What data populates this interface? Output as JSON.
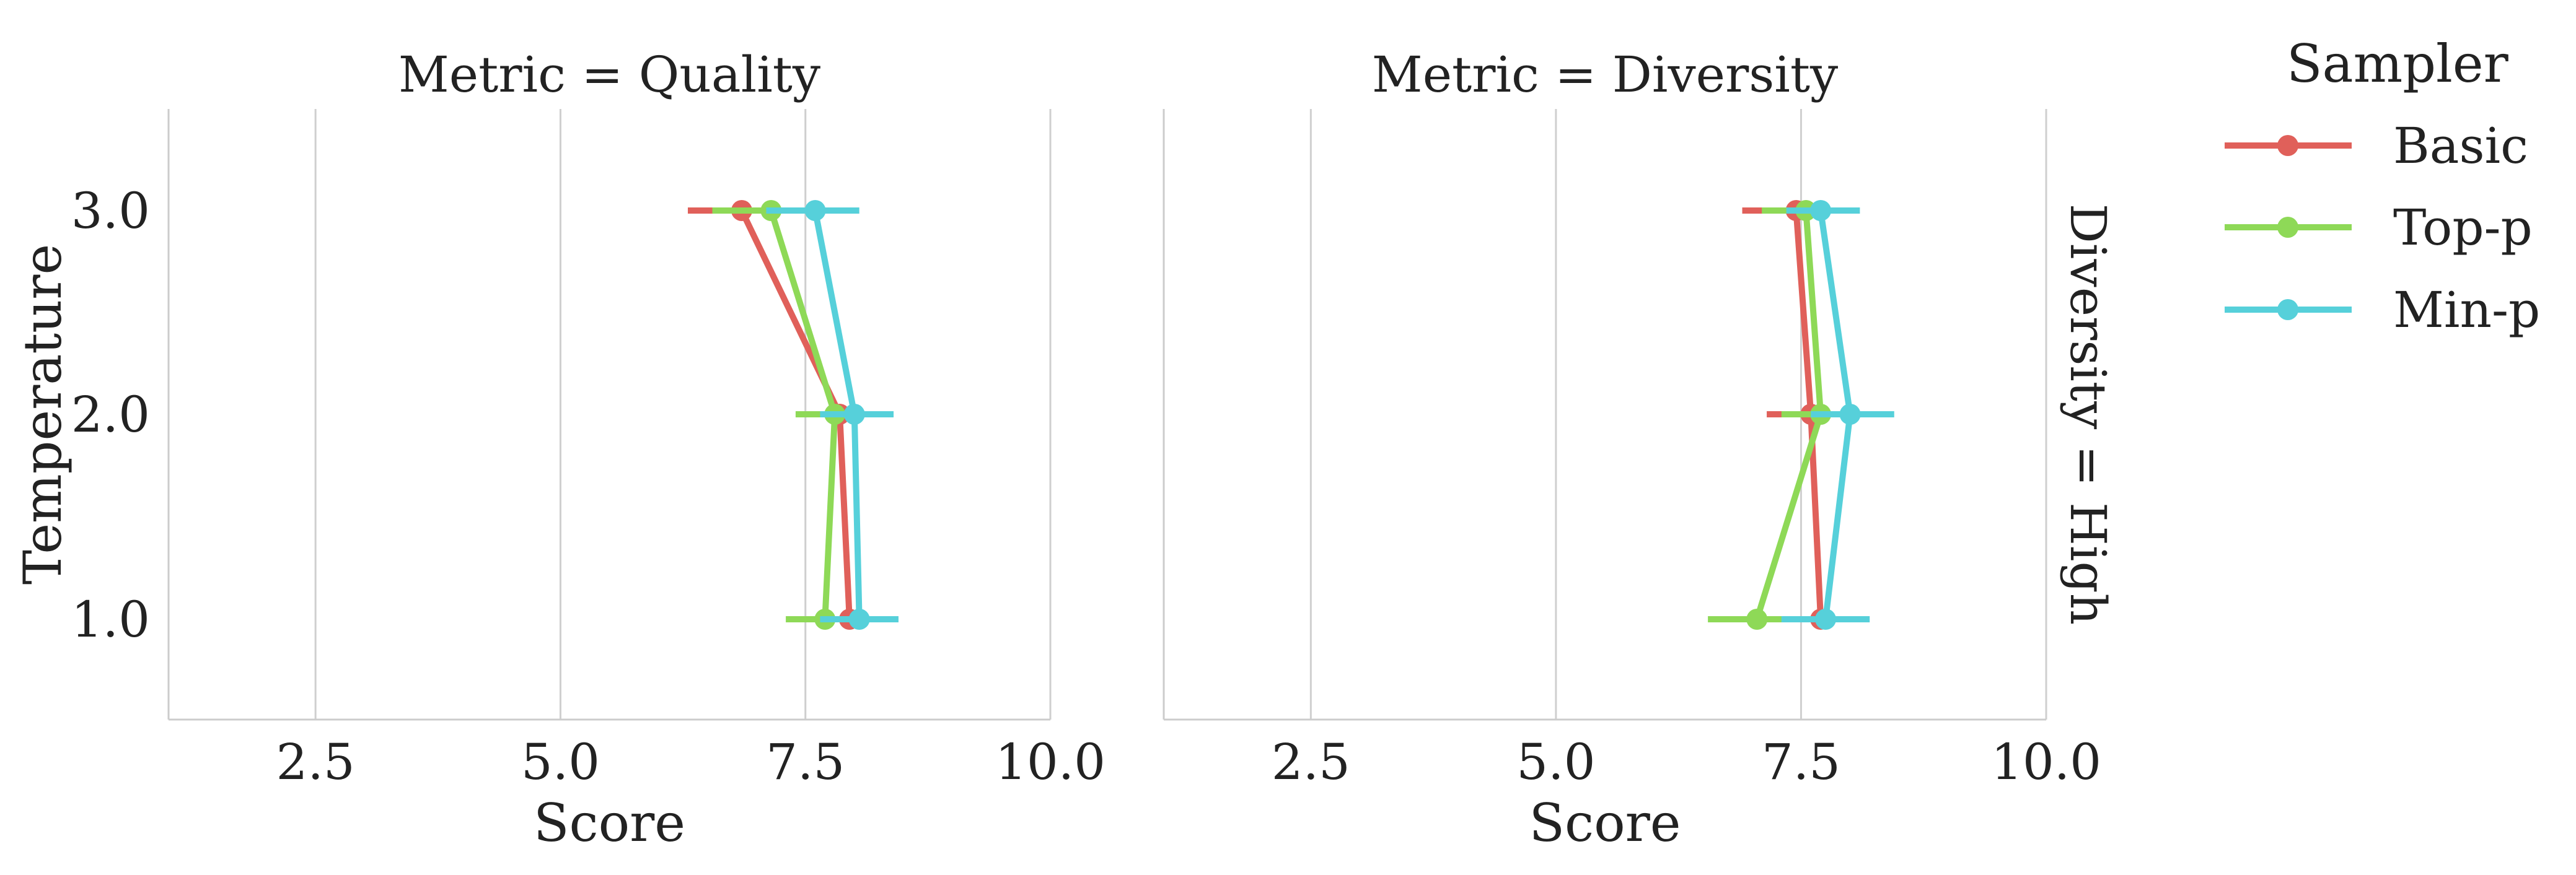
{
  "chart_data": {
    "type": "line",
    "facet_row_label": "Diversity = High",
    "ylabel": "Temperature",
    "y_ticks": [
      "3.0",
      "2.0",
      "1.0"
    ],
    "x_ticks": [
      "2.5",
      "5.0",
      "7.5",
      "10.0"
    ],
    "xlim": [
      1.0,
      10.0
    ],
    "legend": {
      "title": "Sampler",
      "placement": "right"
    },
    "series_styles": [
      {
        "name": "Basic",
        "color": "#e0605a"
      },
      {
        "name": "Top-p",
        "color": "#8ed957"
      },
      {
        "name": "Min-p",
        "color": "#56d0da"
      }
    ],
    "panels": [
      {
        "title": "Metric = Quality",
        "xlabel": "Score",
        "series": [
          {
            "name": "Basic",
            "points": [
              {
                "y": "3.0",
                "x": 6.85,
                "lo": 6.3,
                "hi": 7.4
              },
              {
                "y": "2.0",
                "x": 7.85,
                "lo": 7.6,
                "hi": 8.1
              },
              {
                "y": "1.0",
                "x": 7.95,
                "lo": 7.75,
                "hi": 8.15
              }
            ]
          },
          {
            "name": "Top-p",
            "points": [
              {
                "y": "3.0",
                "x": 7.15,
                "lo": 6.55,
                "hi": 7.65
              },
              {
                "y": "2.0",
                "x": 7.8,
                "lo": 7.4,
                "hi": 8.2
              },
              {
                "y": "1.0",
                "x": 7.7,
                "lo": 7.3,
                "hi": 8.1
              }
            ]
          },
          {
            "name": "Min-p",
            "points": [
              {
                "y": "3.0",
                "x": 7.6,
                "lo": 7.1,
                "hi": 8.05
              },
              {
                "y": "2.0",
                "x": 8.0,
                "lo": 7.65,
                "hi": 8.4
              },
              {
                "y": "1.0",
                "x": 8.05,
                "lo": 7.65,
                "hi": 8.45
              }
            ]
          }
        ]
      },
      {
        "title": "Metric = Diversity",
        "xlabel": "Score",
        "series": [
          {
            "name": "Basic",
            "points": [
              {
                "y": "3.0",
                "x": 7.45,
                "lo": 6.9,
                "hi": 7.95
              },
              {
                "y": "2.0",
                "x": 7.6,
                "lo": 7.15,
                "hi": 8.05
              },
              {
                "y": "1.0",
                "x": 7.7,
                "lo": 7.3,
                "hi": 8.05
              }
            ]
          },
          {
            "name": "Top-p",
            "points": [
              {
                "y": "3.0",
                "x": 7.55,
                "lo": 7.1,
                "hi": 7.95
              },
              {
                "y": "2.0",
                "x": 7.7,
                "lo": 7.3,
                "hi": 8.1
              },
              {
                "y": "1.0",
                "x": 7.05,
                "lo": 6.55,
                "hi": 7.55
              }
            ]
          },
          {
            "name": "Min-p",
            "points": [
              {
                "y": "3.0",
                "x": 7.7,
                "lo": 7.35,
                "hi": 8.1
              },
              {
                "y": "2.0",
                "x": 8.0,
                "lo": 7.6,
                "hi": 8.45
              },
              {
                "y": "1.0",
                "x": 7.75,
                "lo": 7.3,
                "hi": 8.2
              }
            ]
          }
        ]
      }
    ]
  }
}
